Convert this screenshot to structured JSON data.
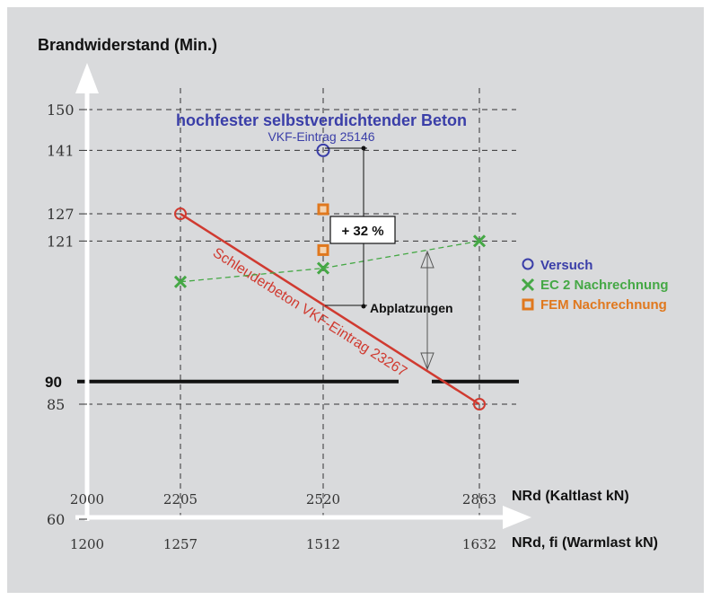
{
  "chart_data": {
    "type": "line",
    "title": "hochfester selbstverdichtender Beton",
    "subtitle": "VKF-Eintrag 25146",
    "ylabel": "Brandwiderstand (Min.)",
    "xlabel_top": "NRd (Kaltlast kN)",
    "xlabel_bottom": "NRd, fi (Warmlast kN)",
    "ylim": [
      60,
      150
    ],
    "y_ticks": [
      "150",
      "141",
      "127",
      "121",
      "90",
      "85",
      "60"
    ],
    "x_ticks_top": [
      "2000",
      "2205",
      "2520",
      "2863"
    ],
    "x_ticks_bottom": [
      "1200",
      "1257",
      "1512",
      "1632"
    ],
    "threshold": {
      "value": 90,
      "label": "90"
    },
    "red_line_label": "Schleuderbeton VKF-Eintrag 23267",
    "annotations": {
      "increase": "+ 32 %",
      "spalling": "Abplatzungen"
    },
    "legend": {
      "placement": "right",
      "entries": [
        {
          "label": "Versuch",
          "color": "#3a3ea8",
          "marker": "circle"
        },
        {
          "label": "EC 2 Nachrechnung",
          "color": "#45a845",
          "marker": "x"
        },
        {
          "label": "FEM Nachrechnung",
          "color": "#e0781e",
          "marker": "square"
        }
      ]
    },
    "series": [
      {
        "name": "Versuch",
        "x": [
          1512
        ],
        "y": [
          141
        ]
      },
      {
        "name": "EC 2 Nachrechnung",
        "x": [
          1257,
          1512,
          1632
        ],
        "y": [
          112,
          115,
          121
        ]
      },
      {
        "name": "FEM Nachrechnung",
        "x": [
          1512,
          1512
        ],
        "y": [
          128,
          119
        ]
      },
      {
        "name": "Schleuderbeton VKF-Eintrag 23267",
        "x": [
          1257,
          1632
        ],
        "y": [
          127,
          85
        ]
      }
    ],
    "colors": {
      "red": "#d03a30",
      "blue": "#3a3ea8",
      "green": "#45a845",
      "orange": "#e0781e"
    }
  }
}
